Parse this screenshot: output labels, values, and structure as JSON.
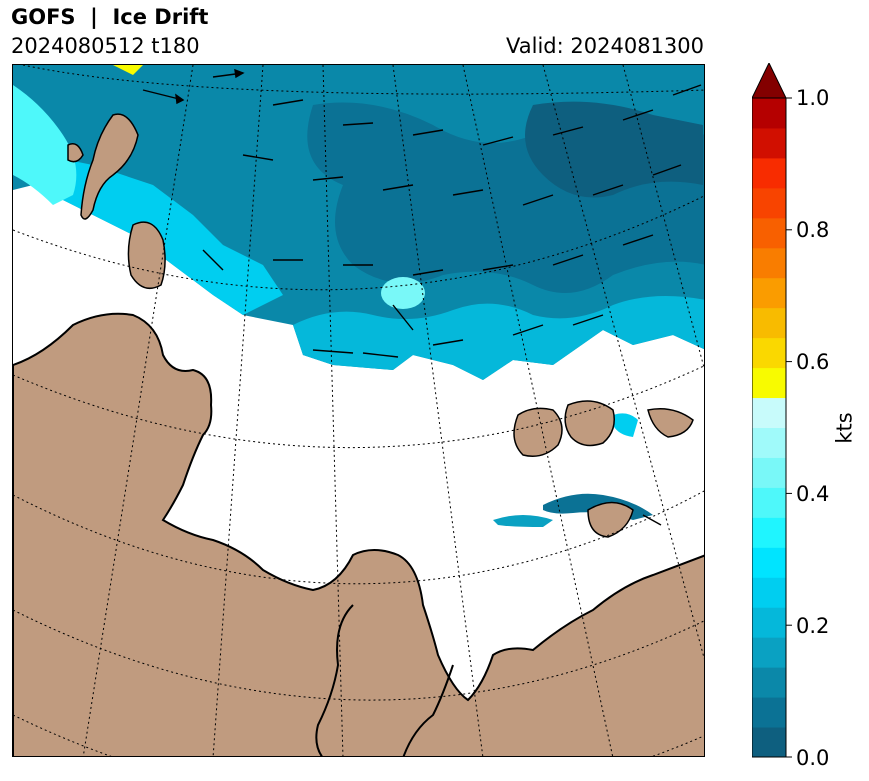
{
  "header": {
    "title": "GOFS  |  Ice Drift",
    "run": "2024080512 t180",
    "valid": "Valid: 2024081300"
  },
  "colorbar": {
    "label": "kts",
    "min": 0.0,
    "max": 1.0,
    "extend": "max",
    "ticks": [
      "0.0",
      "0.2",
      "0.4",
      "0.6",
      "0.8",
      "1.0"
    ],
    "tick_values": [
      0.0,
      0.2,
      0.4,
      0.6,
      0.8,
      1.0
    ],
    "colors": [
      "#0e5f7f",
      "#0b7295",
      "#0b88a9",
      "#0aa1c2",
      "#05b8da",
      "#00cef0",
      "#00e4ff",
      "#1ff5ff",
      "#4ef8fa",
      "#79f8f8",
      "#a0fafa",
      "#c8fbfb",
      "#f8fb00",
      "#fad800",
      "#f8bb00",
      "#fa9c00",
      "#f97d00",
      "#f86000",
      "#f84400",
      "#f82c00",
      "#d10f00",
      "#b50000",
      "#830000"
    ]
  },
  "map": {
    "land_color": "#c09b7f",
    "ocean_color": "#ffffff",
    "graticule_style": "dotted"
  }
}
